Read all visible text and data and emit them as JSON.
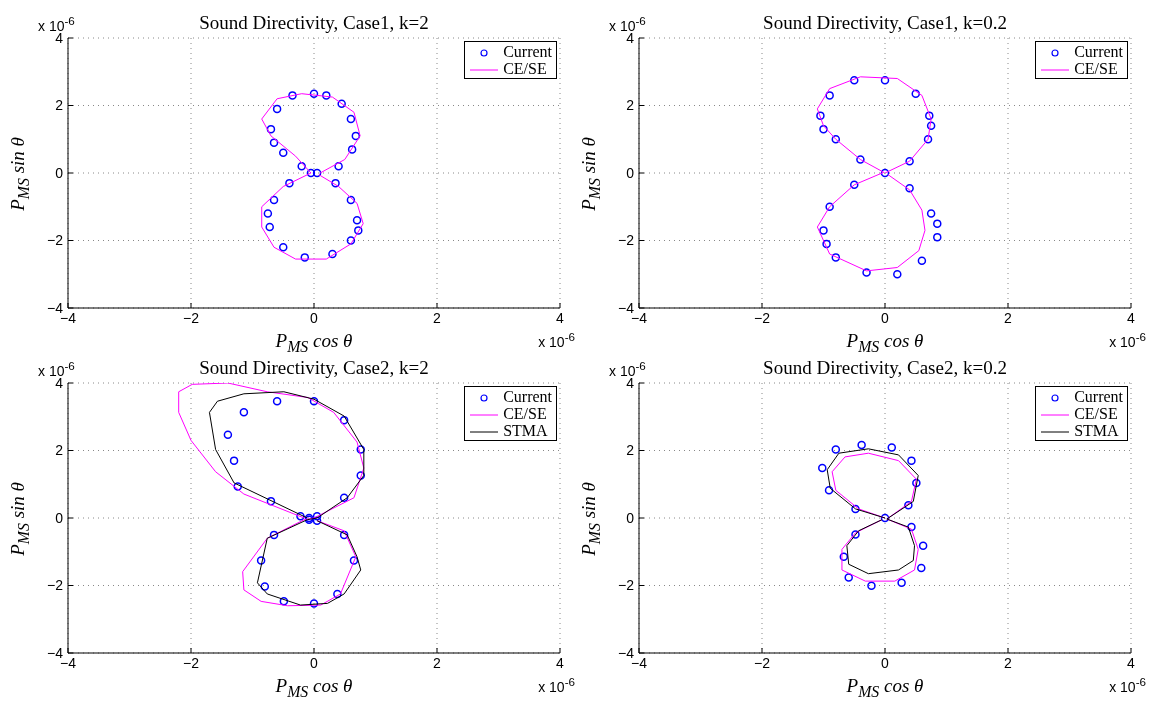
{
  "chart_data": [
    {
      "type": "line",
      "title": "Sound Directivity, Case1, k=2",
      "xlabel": "P$_{MS}$ cos θ",
      "ylabel": "P$_{MS}$ sin θ",
      "annotations": [
        "x 10$^{-6}$",
        "x 10$^{-6}$"
      ],
      "xlim": [
        -4,
        4
      ],
      "ylim": [
        -4,
        4
      ],
      "xticks": [
        -4,
        -2,
        0,
        2,
        4
      ],
      "yticks": [
        -4,
        -2,
        0,
        2,
        4
      ],
      "grid": true,
      "legend": "top right",
      "series": [
        {
          "name": "Current",
          "type": "scatter",
          "marker": "circle",
          "color": "#0000ff",
          "x": [
            0.05,
            0.4,
            0.62,
            0.68,
            0.6,
            0.45,
            0.2,
            0,
            -0.35,
            -0.6,
            -0.7,
            -0.65,
            -0.5,
            -0.2,
            -0.05,
            -0.4,
            -0.65,
            -0.75,
            -0.72,
            -0.5,
            -0.15,
            0.3,
            0.6,
            0.72,
            0.7,
            0.6,
            0.35
          ],
          "values": [
            0,
            0.2,
            0.7,
            1.1,
            1.6,
            2.05,
            2.3,
            2.35,
            2.3,
            1.9,
            1.3,
            0.9,
            0.6,
            0.2,
            0,
            -0.3,
            -0.8,
            -1.2,
            -1.6,
            -2.2,
            -2.5,
            -2.4,
            -2.0,
            -1.7,
            -1.4,
            -0.8,
            -0.3
          ]
        },
        {
          "name": "CE/SE",
          "type": "line",
          "color": "#ff00ff",
          "x": [
            0.1,
            0.5,
            0.75,
            0.65,
            0.3,
            -0.2,
            -0.6,
            -0.85,
            -0.7,
            -0.3,
            -0.05,
            -0.5,
            -0.85,
            -0.85,
            -0.65,
            -0.3,
            0.2,
            0.6,
            0.8,
            0.7,
            0.4,
            0.08
          ],
          "values": [
            0,
            0.4,
            1.1,
            1.8,
            2.25,
            2.35,
            2.2,
            1.6,
            1.1,
            0.5,
            0,
            -0.4,
            -1.0,
            -1.6,
            -2.2,
            -2.55,
            -2.55,
            -2.1,
            -1.5,
            -0.9,
            -0.4,
            -0.05
          ]
        }
      ]
    },
    {
      "type": "line",
      "title": "Sound Directivity, Case1, k=0.2",
      "xlabel": "P$_{MS}$ cos θ",
      "ylabel": "P$_{MS}$ sin θ",
      "annotations": [
        "x 10$^{-6}$",
        "x 10$^{-6}$"
      ],
      "xlim": [
        -4,
        4
      ],
      "ylim": [
        -4,
        4
      ],
      "xticks": [
        -4,
        -2,
        0,
        2,
        4
      ],
      "yticks": [
        -4,
        -2,
        0,
        2,
        4
      ],
      "grid": true,
      "legend": "top right",
      "series": [
        {
          "name": "Current",
          "type": "scatter",
          "marker": "circle",
          "color": "#0000ff",
          "x": [
            0,
            0.4,
            0.7,
            0.75,
            0.72,
            0.5,
            0,
            -0.5,
            -0.9,
            -1.05,
            -1.0,
            -0.8,
            -0.4,
            -0.5,
            -0.9,
            -1.0,
            -0.95,
            -0.8,
            -0.3,
            0.2,
            0.6,
            0.85,
            0.85,
            0.75,
            0.4
          ],
          "values": [
            0,
            0.35,
            1.0,
            1.4,
            1.7,
            2.35,
            2.75,
            2.75,
            2.3,
            1.7,
            1.3,
            1.0,
            0.4,
            -0.35,
            -1.0,
            -1.7,
            -2.1,
            -2.5,
            -2.95,
            -3.0,
            -2.6,
            -1.9,
            -1.5,
            -1.2,
            -0.45
          ]
        },
        {
          "name": "CE/SE",
          "type": "line",
          "color": "#ff00ff",
          "x": [
            0,
            0.4,
            0.7,
            0.75,
            0.6,
            0.2,
            -0.4,
            -0.9,
            -1.1,
            -1.0,
            -0.8,
            -0.4,
            -0.02,
            -0.5,
            -0.9,
            -1.1,
            -0.9,
            -0.3,
            0.2,
            0.55,
            0.65,
            0.6,
            0.4,
            0.05
          ],
          "values": [
            0,
            0.35,
            1.0,
            1.6,
            2.3,
            2.8,
            2.85,
            2.5,
            1.9,
            1.4,
            1.0,
            0.4,
            0.02,
            -0.35,
            -1.0,
            -1.6,
            -2.4,
            -2.9,
            -2.8,
            -2.3,
            -1.7,
            -1.1,
            -0.5,
            -0.05
          ]
        }
      ]
    },
    {
      "type": "line",
      "title": "Sound Directivity, Case2, k=2",
      "xlabel": "P$_{MS}$ cos θ",
      "ylabel": "P$_{MS}$ sin θ",
      "annotations": [
        "x 10$^{-6}$",
        "x 10$^{-6}$"
      ],
      "xlim": [
        -4,
        4
      ],
      "ylim": [
        -4,
        4
      ],
      "xticks": [
        -4,
        -2,
        0,
        2,
        4
      ],
      "yticks": [
        -4,
        -2,
        0,
        2,
        4
      ],
      "grid": true,
      "legend": "top right",
      "series": [
        {
          "name": "Current",
          "type": "scatter",
          "marker": "circle",
          "color": "#0000ff",
          "x": [
            -0.08,
            -0.22,
            -0.7,
            -1.24,
            -1.3,
            -1.4,
            -1.14,
            -0.6,
            0,
            0.49,
            0.76,
            0.76,
            0.49,
            0.05,
            -0.08,
            -0.65,
            -0.86,
            -0.8,
            -0.49,
            0,
            0.38,
            0.65,
            0.49,
            0.05
          ],
          "values": [
            0,
            0.05,
            0.5,
            0.93,
            1.7,
            2.47,
            3.13,
            3.46,
            3.46,
            2.9,
            2.03,
            1.26,
            0.6,
            0.05,
            -0.05,
            -0.5,
            -1.26,
            -2.03,
            -2.47,
            -2.53,
            -2.25,
            -1.26,
            -0.5,
            -0.08
          ]
        },
        {
          "name": "CE/SE",
          "type": "line",
          "color": "#ff00ff",
          "x": [
            -0.16,
            -1.14,
            -1.6,
            -2.0,
            -2.2,
            -2.2,
            -1.98,
            -1.4,
            -0.76,
            -0.1,
            0.32,
            0.7,
            0.81,
            0.65,
            0,
            -0.16,
            -0.76,
            -1.16,
            -1.14,
            -0.86,
            -0.43,
            0.11,
            0.43,
            0.68,
            0.49,
            0.05
          ],
          "values": [
            0,
            0.71,
            1.37,
            2.3,
            3.13,
            3.74,
            3.96,
            4.0,
            3.74,
            3.57,
            3.13,
            2.25,
            1.48,
            0.6,
            0,
            -0.05,
            -0.6,
            -1.59,
            -2.13,
            -2.47,
            -2.6,
            -2.58,
            -2.25,
            -1.15,
            -0.38,
            -0.08
          ]
        },
        {
          "name": "STMA",
          "type": "line",
          "color": "#000000",
          "x": [
            -0.11,
            -1.3,
            -1.6,
            -1.7,
            -1.57,
            -1.14,
            -0.49,
            0,
            0.49,
            0.81,
            0.81,
            0.54,
            0.05,
            -0.11,
            -0.76,
            -0.92,
            -0.76,
            -0.22,
            0.22,
            0.49,
            0.76,
            0.7,
            0.54,
            0.05
          ],
          "values": [
            0,
            1.04,
            2.03,
            3.13,
            3.46,
            3.68,
            3.74,
            3.52,
            3.02,
            2.03,
            1.26,
            0.6,
            0,
            -0.05,
            -0.6,
            -1.92,
            -2.25,
            -2.58,
            -2.53,
            -2.25,
            -1.54,
            -1.15,
            -0.5,
            -0.08
          ]
        }
      ]
    },
    {
      "type": "line",
      "title": "Sound Directivity, Case2, k=0.2",
      "xlabel": "P$_{MS}$ cos θ",
      "ylabel": "P$_{MS}$ sin θ",
      "annotations": [
        "x 10$^{-6}$",
        "x 10$^{-6}$"
      ],
      "xlim": [
        -4,
        4
      ],
      "ylim": [
        -4,
        4
      ],
      "xticks": [
        -4,
        -2,
        0,
        2,
        4
      ],
      "yticks": [
        -4,
        -2,
        0,
        2,
        4
      ],
      "grid": true,
      "legend": "top right",
      "series": [
        {
          "name": "Current",
          "type": "scatter",
          "marker": "circle",
          "color": "#0000ff",
          "x": [
            0,
            -0.48,
            -0.91,
            -1.02,
            -0.8,
            -0.38,
            0.11,
            0.43,
            0.51,
            0.38,
            0.43,
            0.62,
            0.59,
            0.27,
            -0.22,
            -0.59,
            -0.67,
            -0.48
          ],
          "values": [
            0,
            0.27,
            0.82,
            1.48,
            2.03,
            2.16,
            2.09,
            1.7,
            1.04,
            0.38,
            -0.27,
            -0.82,
            -1.48,
            -1.92,
            -2.01,
            -1.76,
            -1.15,
            -0.49
          ]
        },
        {
          "name": "CE/SE",
          "type": "line",
          "color": "#ff00ff",
          "x": [
            0,
            -0.43,
            -0.8,
            -0.86,
            -0.65,
            -0.27,
            0.22,
            0.51,
            0.43,
            0.03,
            0.43,
            0.54,
            0.48,
            0.16,
            -0.32,
            -0.7,
            -0.7,
            -0.48,
            -0.05
          ],
          "values": [
            0,
            0.27,
            0.82,
            1.37,
            1.81,
            1.92,
            1.7,
            1.15,
            0.49,
            -0.03,
            -0.33,
            -0.93,
            -1.54,
            -1.87,
            -1.87,
            -1.54,
            -0.93,
            -0.44,
            -0.05
          ]
        },
        {
          "name": "STMA",
          "type": "line",
          "color": "#000000",
          "x": [
            0,
            -0.48,
            -0.89,
            -0.94,
            -0.75,
            -0.27,
            0.22,
            0.54,
            0.46,
            0.03,
            0.38,
            0.48,
            0.46,
            0.22,
            -0.27,
            -0.59,
            -0.62,
            -0.43,
            -0.05
          ],
          "values": [
            0,
            0.27,
            0.88,
            1.43,
            1.92,
            2.05,
            1.87,
            1.26,
            0.49,
            -0.03,
            -0.27,
            -0.82,
            -1.26,
            -1.54,
            -1.65,
            -1.37,
            -0.82,
            -0.38,
            -0.05
          ]
        }
      ]
    }
  ]
}
